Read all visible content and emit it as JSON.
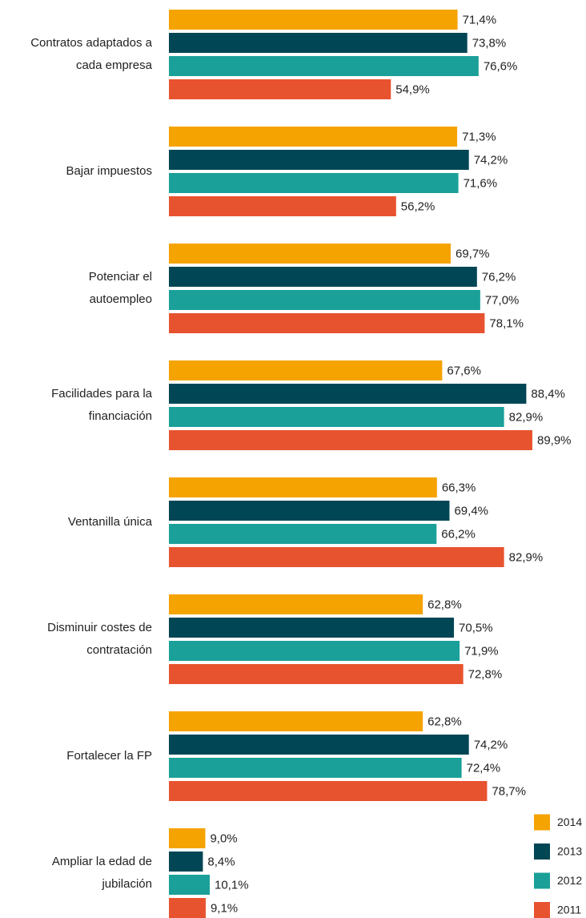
{
  "chart_data": {
    "type": "hbar",
    "categories": [
      "Contratos adaptados a\ncada empresa",
      "Bajar impuestos",
      "Potenciar el\nautoempleo",
      "Facilidades para la\nfinanciación",
      "Ventanilla única",
      "Disminuir costes de\ncontratación",
      "Fortalecer la FP",
      "Ampliar la edad de\njubilación"
    ],
    "series": [
      {
        "name": "2014",
        "color": "#f5a300",
        "values": [
          71.4,
          71.3,
          69.7,
          67.6,
          66.3,
          62.8,
          62.8,
          9.0
        ],
        "value_labels": [
          "71,4%",
          "71,3%",
          "69,7%",
          "67,6%",
          "66,3%",
          "62,8%",
          "62,8%",
          "9,0%"
        ]
      },
      {
        "name": "2013",
        "color": "#004655",
        "values": [
          73.8,
          74.2,
          76.2,
          88.4,
          69.4,
          70.5,
          74.2,
          8.4
        ],
        "value_labels": [
          "73,8%",
          "74,2%",
          "76,2%",
          "88,4%",
          "69,4%",
          "70,5%",
          "74,2%",
          "8,4%"
        ]
      },
      {
        "name": "2012",
        "color": "#1aa098",
        "values": [
          76.6,
          71.6,
          77.0,
          82.9,
          66.2,
          71.9,
          72.4,
          10.1
        ],
        "value_labels": [
          "76,6%",
          "71,6%",
          "77,0%",
          "82,9%",
          "66,2%",
          "71,9%",
          "72,4%",
          "10,1%"
        ]
      },
      {
        "name": "2011",
        "color": "#e8532f",
        "values": [
          54.9,
          56.2,
          78.1,
          89.9,
          82.9,
          72.8,
          78.7,
          9.1
        ],
        "value_labels": [
          "54,9%",
          "56,2%",
          "78,1%",
          "89,9%",
          "82,9%",
          "72,8%",
          "78,7%",
          "9,1%"
        ]
      }
    ],
    "xlim": [
      0,
      100
    ],
    "legend": "bottom-right"
  }
}
